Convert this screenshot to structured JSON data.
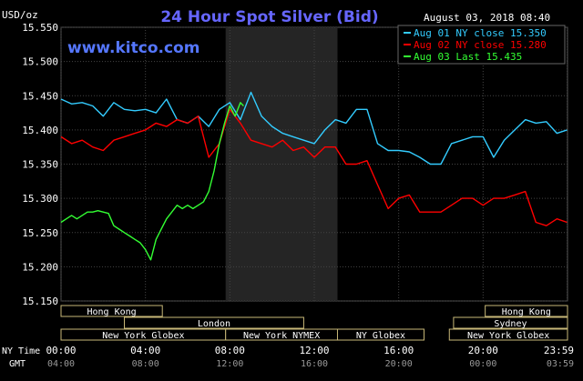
{
  "chart_data": {
    "type": "line",
    "title": "24 Hour Spot Silver (Bid)",
    "ylabel": "USD/oz",
    "watermark": "www.kitco.com",
    "datetime": "August 03, 2018 08:40",
    "ylim": [
      15.15,
      15.55
    ],
    "yticks": [
      "15.550",
      "15.500",
      "15.450",
      "15.400",
      "15.350",
      "15.300",
      "15.250",
      "15.200",
      "15.150"
    ],
    "x_hours": [
      0,
      4,
      8,
      12,
      16,
      20,
      23.983
    ],
    "x_row_label": "NY Time",
    "x_ticks_ny": [
      "00:00",
      "04:00",
      "08:00",
      "12:00",
      "16:00",
      "20:00",
      "23:59"
    ],
    "x_row2_label": "GMT",
    "x_ticks_gmt": [
      "04:00",
      "08:00",
      "12:00",
      "16:00",
      "20:00",
      "00:00",
      "03:59"
    ],
    "grid": true,
    "shaded_window": [
      7.8,
      13.1
    ],
    "legend_placement": "top-right",
    "series": [
      {
        "name": "Aug 01 NY close 15.350",
        "color": "#33ccff",
        "x": [
          0,
          0.5,
          1,
          1.5,
          2,
          2.5,
          3,
          3.5,
          4,
          4.5,
          5,
          5.5,
          6,
          6.5,
          7,
          7.5,
          8,
          8.5,
          9,
          9.5,
          10,
          10.5,
          11,
          11.5,
          12,
          12.5,
          13,
          13.5,
          14,
          14.5,
          15,
          15.5,
          16,
          16.5,
          17,
          17.5,
          18,
          18.5,
          19,
          19.5,
          20,
          20.5,
          21,
          21.5,
          22,
          22.5,
          23,
          23.5,
          23.98
        ],
        "y": [
          15.445,
          15.438,
          15.44,
          15.435,
          15.42,
          15.44,
          15.43,
          15.428,
          15.43,
          15.425,
          15.445,
          15.415,
          15.41,
          15.42,
          15.405,
          15.43,
          15.44,
          15.415,
          15.455,
          15.42,
          15.405,
          15.395,
          15.39,
          15.385,
          15.38,
          15.4,
          15.415,
          15.41,
          15.43,
          15.43,
          15.38,
          15.37,
          15.37,
          15.368,
          15.36,
          15.35,
          15.35,
          15.38,
          15.385,
          15.39,
          15.39,
          15.36,
          15.385,
          15.4,
          15.415,
          15.41,
          15.412,
          15.395,
          15.4
        ]
      },
      {
        "name": "Aug 02 NY close 15.280",
        "color": "#ff0000",
        "x": [
          0,
          0.5,
          1,
          1.5,
          2,
          2.5,
          3,
          3.5,
          4,
          4.5,
          5,
          5.5,
          6,
          6.5,
          7,
          7.5,
          8,
          8.5,
          9,
          9.5,
          10,
          10.5,
          11,
          11.5,
          12,
          12.5,
          13,
          13.5,
          14,
          14.5,
          15,
          15.5,
          16,
          16.5,
          17,
          17.5,
          18,
          18.5,
          19,
          19.5,
          20,
          20.5,
          21,
          21.5,
          22,
          22.5,
          23,
          23.5,
          23.98
        ],
        "y": [
          15.39,
          15.38,
          15.385,
          15.375,
          15.37,
          15.385,
          15.39,
          15.395,
          15.4,
          15.41,
          15.405,
          15.415,
          15.41,
          15.42,
          15.36,
          15.38,
          15.43,
          15.41,
          15.385,
          15.38,
          15.375,
          15.385,
          15.37,
          15.375,
          15.36,
          15.375,
          15.375,
          15.35,
          15.35,
          15.355,
          15.32,
          15.285,
          15.3,
          15.305,
          15.28,
          15.28,
          15.28,
          15.29,
          15.3,
          15.3,
          15.29,
          15.3,
          15.3,
          15.305,
          15.31,
          15.265,
          15.26,
          15.27,
          15.265
        ]
      },
      {
        "name": "Aug 03 Last 15.435",
        "color": "#33ff33",
        "x": [
          0,
          0.25,
          0.5,
          0.75,
          1,
          1.25,
          1.5,
          1.75,
          2,
          2.25,
          2.5,
          2.75,
          3,
          3.25,
          3.5,
          3.75,
          4,
          4.25,
          4.5,
          4.75,
          5,
          5.25,
          5.5,
          5.75,
          6,
          6.25,
          6.5,
          6.75,
          7,
          7.25,
          7.5,
          7.75,
          8,
          8.25,
          8.5,
          8.65
        ],
        "y": [
          15.265,
          15.27,
          15.275,
          15.27,
          15.275,
          15.28,
          15.28,
          15.282,
          15.28,
          15.278,
          15.26,
          15.255,
          15.25,
          15.245,
          15.24,
          15.235,
          15.225,
          15.21,
          15.24,
          15.255,
          15.27,
          15.28,
          15.29,
          15.285,
          15.29,
          15.285,
          15.29,
          15.295,
          15.31,
          15.34,
          15.38,
          15.41,
          15.435,
          15.42,
          15.44,
          15.435
        ]
      }
    ],
    "session_rows": [
      [
        {
          "label": "Hong Kong",
          "start": 0,
          "end": 4.8
        },
        {
          "label": "Hong Kong",
          "start": 20.1,
          "end": 24
        }
      ],
      [
        {
          "label": "London",
          "start": 3,
          "end": 11.5
        },
        {
          "label": "Sydney",
          "start": 18.6,
          "end": 24
        }
      ],
      [
        {
          "label": "New York Globex",
          "start": 0,
          "end": 7.8
        },
        {
          "label": "New York NYMEX",
          "start": 7.8,
          "end": 13.1
        },
        {
          "label": "NY Globex",
          "start": 13.1,
          "end": 17.2
        },
        {
          "label": "New York Globex",
          "start": 18.4,
          "end": 24
        }
      ]
    ]
  }
}
